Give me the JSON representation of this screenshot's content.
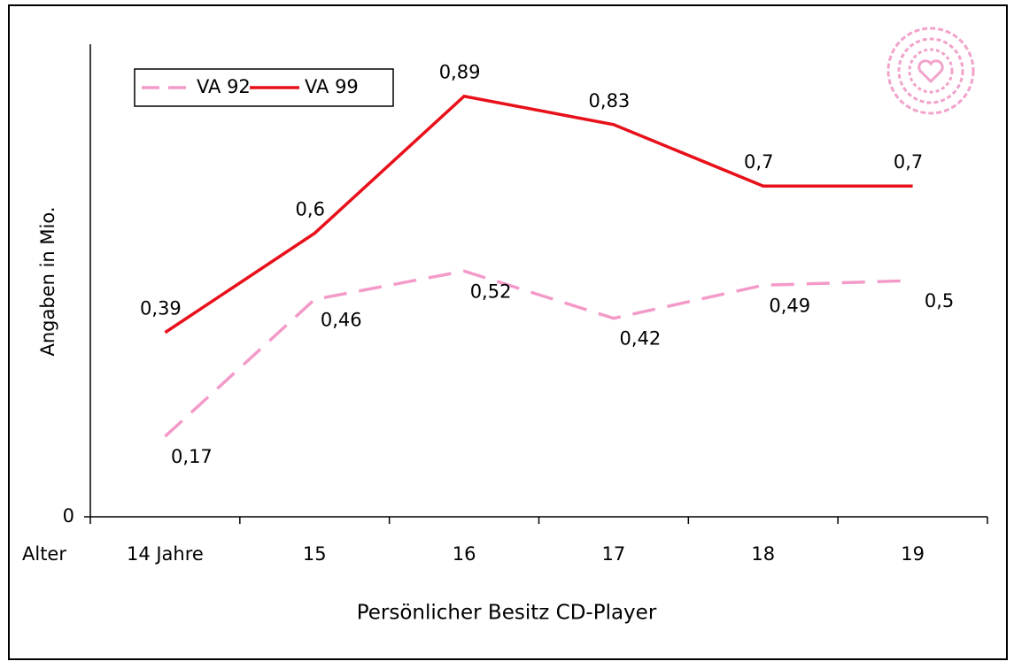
{
  "chart_data": {
    "type": "line",
    "xlabel": "Persönlicher Besitz CD-Player",
    "ylabel": "Angaben in Mio.",
    "x_row_label": "Alter",
    "categories": [
      "14 Jahre",
      "15",
      "16",
      "17",
      "18",
      "19"
    ],
    "series": [
      {
        "name": "VA 92",
        "color": "#f49ac9",
        "dash": true,
        "values": [
          0.17,
          0.46,
          0.52,
          0.42,
          0.49,
          0.5
        ],
        "value_labels": [
          "0,17",
          "0,46",
          "0,52",
          "0,42",
          "0,49",
          "0,5"
        ]
      },
      {
        "name": "VA 99",
        "color": "#e8101a",
        "dash": false,
        "values": [
          0.39,
          0.6,
          0.89,
          0.83,
          0.7,
          0.7
        ],
        "value_labels": [
          "0,39",
          "0,6",
          "0,89",
          "0,83",
          "0,7",
          "0,7"
        ]
      }
    ],
    "ylim": [
      0,
      1
    ],
    "yticks": [
      0
    ]
  }
}
